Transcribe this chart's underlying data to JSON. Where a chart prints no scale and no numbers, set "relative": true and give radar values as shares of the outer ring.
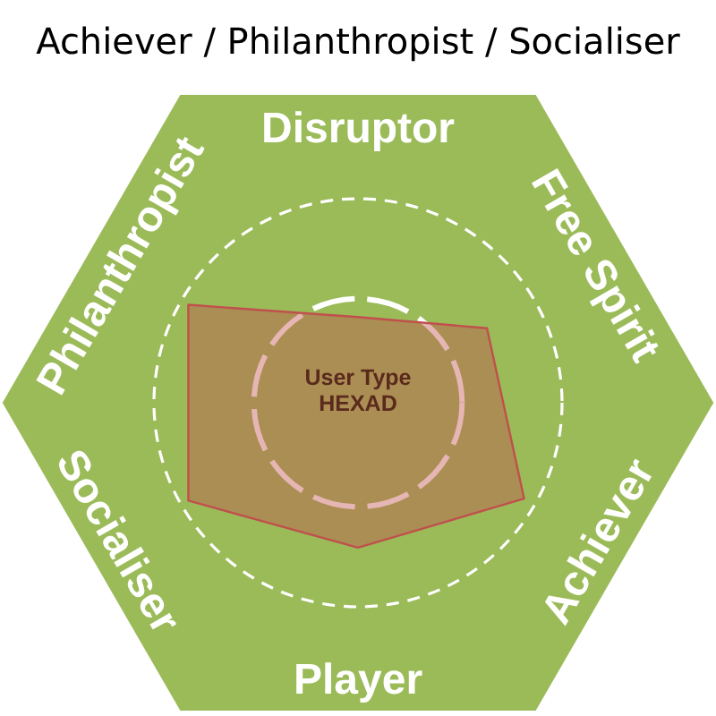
{
  "chart_data": {
    "type": "radar",
    "title": "Achiever / Philanthropist / Socialiser",
    "categories": [
      "Disruptor",
      "Free Spirit",
      "Achiever",
      "Player",
      "Socialiser",
      "Philanthropist"
    ],
    "series": [
      {
        "color": "#c0504d",
        "values": [
          0.42,
          0.73,
          0.94,
          0.71,
          0.96,
          0.96
        ]
      }
    ],
    "relative": true,
    "grid": true,
    "annotations": [
      "User Type\nHEXAD"
    ]
  }
}
